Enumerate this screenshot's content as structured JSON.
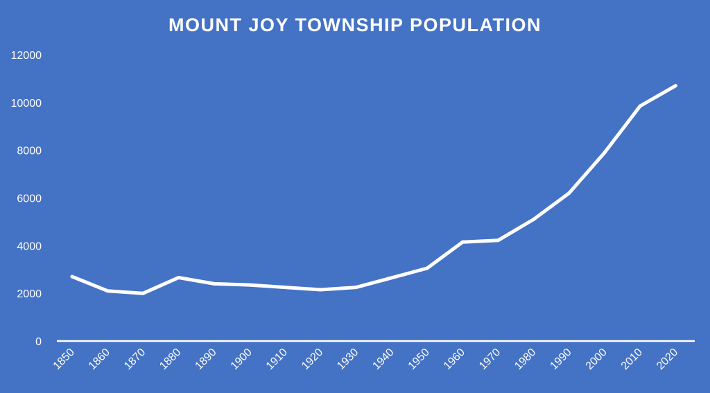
{
  "chart_data": {
    "type": "line",
    "title": "MOUNT JOY TOWNSHIP POPULATION",
    "xlabel": "",
    "ylabel": "",
    "categories": [
      "1850",
      "1860",
      "1870",
      "1880",
      "1890",
      "1900",
      "1910",
      "1920",
      "1930",
      "1940",
      "1950",
      "1960",
      "1970",
      "1980",
      "1990",
      "2000",
      "2010",
      "2020"
    ],
    "series": [
      {
        "values": [
          2700,
          2100,
          2000,
          2660,
          2400,
          2350,
          2250,
          2150,
          2250,
          2650,
          3050,
          4150,
          4220,
          5100,
          6200,
          7900,
          9850,
          10700
        ]
      }
    ],
    "ylim": [
      0,
      12000
    ],
    "yticks": [
      0,
      2000,
      4000,
      6000,
      8000,
      10000,
      12000
    ],
    "grid": false,
    "drop_lines": true,
    "colors": {
      "background": "#4472c4",
      "line": "#ffffff",
      "text": "#ffffff"
    }
  }
}
